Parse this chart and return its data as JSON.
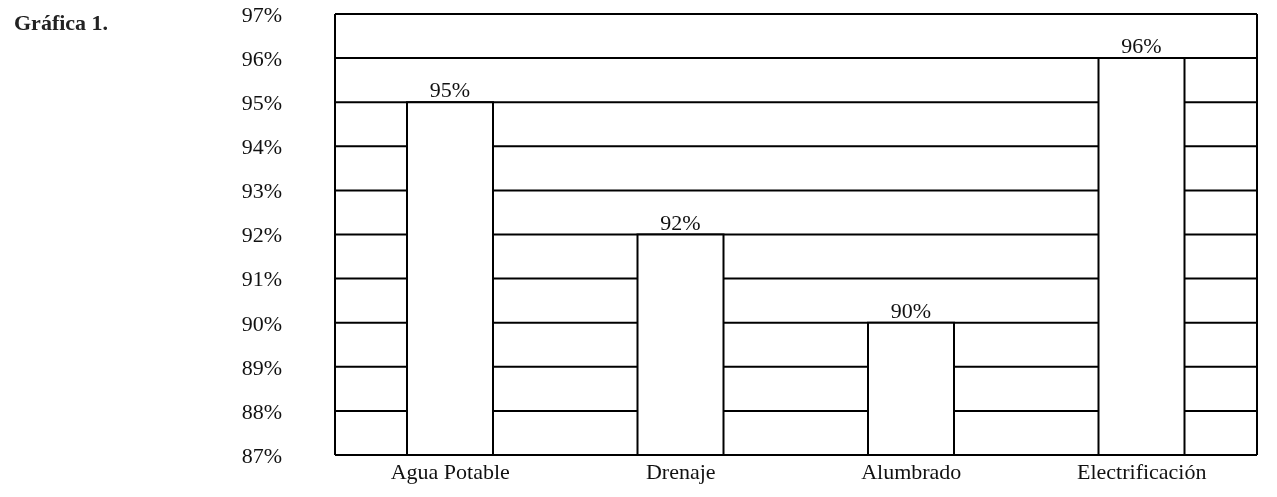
{
  "chart_data": {
    "type": "bar",
    "title": "Gráfica 1.",
    "categories": [
      "Agua Potable",
      "Drenaje",
      "Alumbrado",
      "Electrificación"
    ],
    "values": [
      95,
      92,
      90,
      96
    ],
    "color": "#ffffff",
    "value_labels": [
      "95%",
      "92%",
      "90%",
      "96%"
    ],
    "ylim": [
      87,
      97
    ],
    "yticks": [
      {
        "value": 87,
        "label": "87%"
      },
      {
        "value": 88,
        "label": "88%"
      },
      {
        "value": 89,
        "label": "89%"
      },
      {
        "value": 90,
        "label": "90%"
      },
      {
        "value": 91,
        "label": "91%"
      },
      {
        "value": 92,
        "label": "92%"
      },
      {
        "value": 93,
        "label": "93%"
      },
      {
        "value": 94,
        "label": "94%"
      },
      {
        "value": 95,
        "label": "95%"
      },
      {
        "value": 96,
        "label": "96%"
      },
      {
        "value": 97,
        "label": "97%"
      }
    ],
    "grid": "y"
  }
}
